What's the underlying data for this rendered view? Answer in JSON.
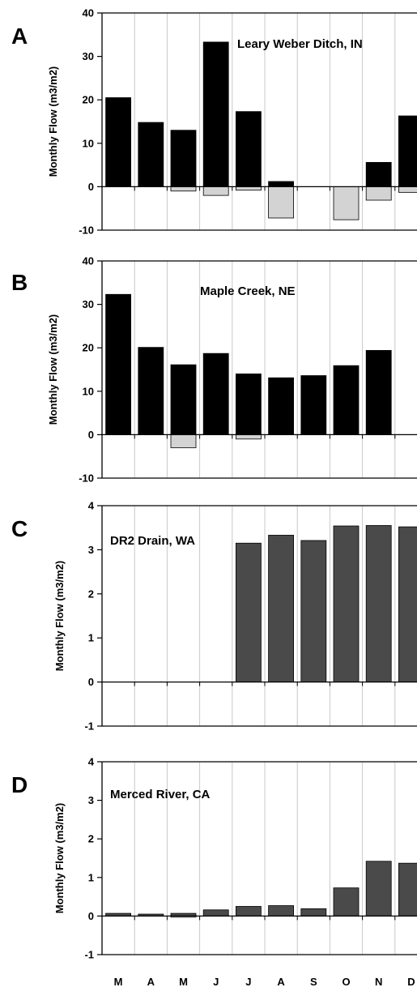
{
  "chart_data": [
    {
      "type": "bar",
      "panel": "A",
      "title": "Leary Weber Ditch, IN",
      "ylabel": "Monthly Flow (m3/m2)",
      "ylim": [
        -10,
        40
      ],
      "yticks": [
        -10,
        0,
        10,
        20,
        30,
        40
      ],
      "categories": [
        "M",
        "A",
        "M",
        "J",
        "J",
        "A",
        "S",
        "O",
        "N",
        "D"
      ],
      "series": [
        {
          "values": [
            20.5,
            14.8,
            13.0,
            33.3,
            17.3,
            1.2,
            0,
            0,
            5.6,
            16.3
          ],
          "color": "#000000"
        },
        {
          "values": [
            0,
            0,
            -1.0,
            -2.0,
            -0.8,
            -7.2,
            0,
            -7.6,
            -3.1,
            -1.3
          ],
          "color": "#d3d3d3"
        }
      ],
      "grid": "vertical"
    },
    {
      "type": "bar",
      "panel": "B",
      "title": "Maple Creek, NE",
      "ylabel": "Monthly Flow (m3/m2)",
      "ylim": [
        -10,
        40
      ],
      "yticks": [
        -10,
        0,
        10,
        20,
        30,
        40
      ],
      "categories": [
        "M",
        "A",
        "M",
        "J",
        "J",
        "A",
        "S",
        "O",
        "N",
        "D"
      ],
      "series": [
        {
          "values": [
            32.3,
            20.1,
            16.1,
            18.7,
            14.0,
            13.1,
            13.6,
            15.9,
            19.4,
            0
          ],
          "color": "#000000"
        },
        {
          "values": [
            0,
            0,
            -3.0,
            0,
            -1.0,
            0,
            0,
            0,
            0,
            0
          ],
          "color": "#d3d3d3"
        }
      ],
      "grid": "vertical"
    },
    {
      "type": "bar",
      "panel": "C",
      "title": "DR2 Drain, WA",
      "ylabel": "Monthly Flow (m3/m2)",
      "ylim": [
        -1,
        4
      ],
      "yticks": [
        -1,
        0,
        1,
        2,
        3,
        4
      ],
      "categories": [
        "M",
        "A",
        "M",
        "J",
        "J",
        "A",
        "S",
        "O",
        "N",
        "D"
      ],
      "series": [
        {
          "values": [
            0,
            0,
            0,
            0,
            3.15,
            3.33,
            3.21,
            3.54,
            3.55,
            3.52
          ],
          "color": "#4a4a4a"
        }
      ],
      "grid": "vertical"
    },
    {
      "type": "bar",
      "panel": "D",
      "title": "Merced River, CA",
      "ylabel": "Monthly Flow (m3/m2)",
      "ylim": [
        -1,
        4
      ],
      "yticks": [
        -1,
        0,
        1,
        2,
        3,
        4
      ],
      "categories": [
        "M",
        "A",
        "M",
        "J",
        "J",
        "A",
        "S",
        "O",
        "N",
        "D"
      ],
      "series": [
        {
          "values": [
            0.07,
            0.05,
            0.07,
            0.16,
            0.25,
            0.27,
            0.19,
            0.73,
            1.42,
            1.37
          ],
          "color": "#4a4a4a"
        },
        {
          "values": [
            0,
            0,
            -0.03,
            0,
            0,
            0,
            0,
            0,
            0,
            0
          ],
          "color": "#d3d3d3"
        }
      ],
      "grid": "vertical"
    }
  ]
}
